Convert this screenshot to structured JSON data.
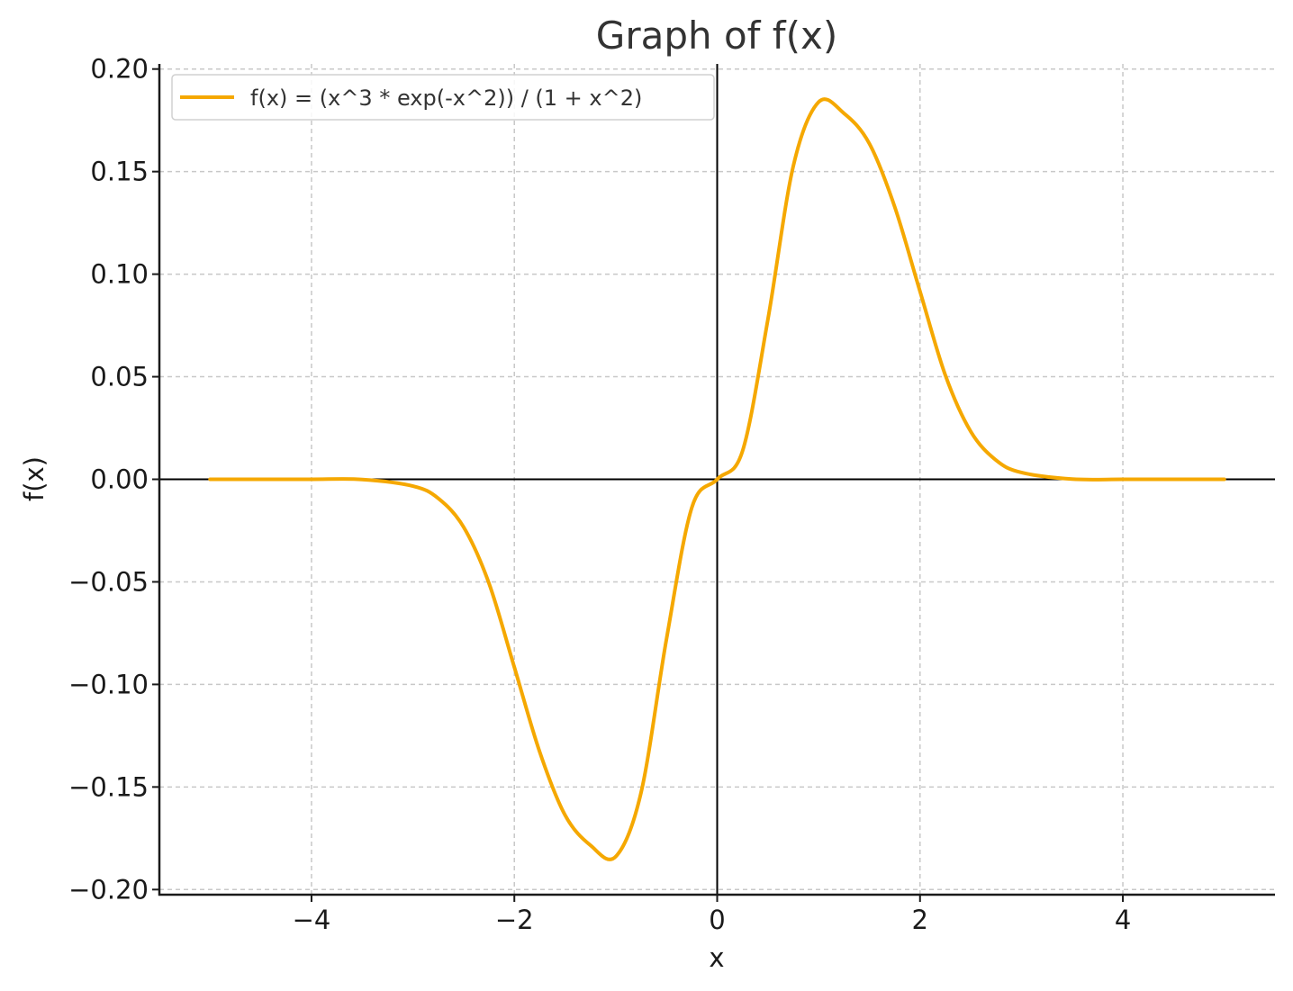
{
  "chart_data": {
    "type": "line",
    "title": "Graph of f(x)",
    "xlabel": "x",
    "ylabel": "f(x)",
    "xlim": [
      -5.5,
      5.5
    ],
    "ylim": [
      -0.2025,
      0.2025
    ],
    "x_ticks": [
      -4,
      -2,
      0,
      2,
      4
    ],
    "x_tick_labels": [
      "−4",
      "−2",
      "0",
      "2",
      "4"
    ],
    "y_ticks": [
      0.2,
      0.15,
      0.1,
      0.05,
      0.0,
      -0.05,
      -0.1,
      -0.15,
      -0.2
    ],
    "y_tick_labels": [
      "0.20",
      "0.15",
      "0.10",
      "0.05",
      "0.00",
      "−0.05",
      "−0.10",
      "−0.15",
      "−0.20"
    ],
    "grid": true,
    "legend_position": "top-left",
    "series": [
      {
        "name": "f(x) = (x^3 * exp(-x^2)) / (1 + x^2)",
        "color": "#F5A800",
        "x": [
          -5.0,
          -4.5,
          -4.0,
          -3.5,
          -3.0,
          -2.75,
          -2.5,
          -2.25,
          -2.0,
          -1.75,
          -1.5,
          -1.25,
          -1.0,
          -0.75,
          -0.5,
          -0.25,
          0.0,
          0.25,
          0.5,
          0.75,
          1.0,
          1.25,
          1.5,
          1.75,
          2.0,
          2.25,
          2.5,
          2.75,
          3.0,
          3.5,
          4.0,
          4.5,
          5.0
        ],
        "y": [
          0.0,
          0.0,
          0.0,
          -0.0001,
          -0.0033,
          -0.0093,
          -0.0233,
          -0.0507,
          -0.0916,
          -0.1329,
          -0.1637,
          -0.1784,
          -0.1839,
          -0.1526,
          -0.0779,
          -0.0138,
          0.0,
          0.0138,
          0.0779,
          0.1526,
          0.1839,
          0.1784,
          0.1637,
          0.1329,
          0.0916,
          0.0507,
          0.0233,
          0.0093,
          0.0033,
          0.0001,
          0.0,
          0.0,
          0.0
        ]
      }
    ],
    "reference_lines": {
      "x_zero": true,
      "y_zero": true
    },
    "colors": {
      "line": "#F5A800",
      "grid": "#c8c8c8",
      "axis": "#1a1a1a",
      "title": "#333333"
    }
  }
}
